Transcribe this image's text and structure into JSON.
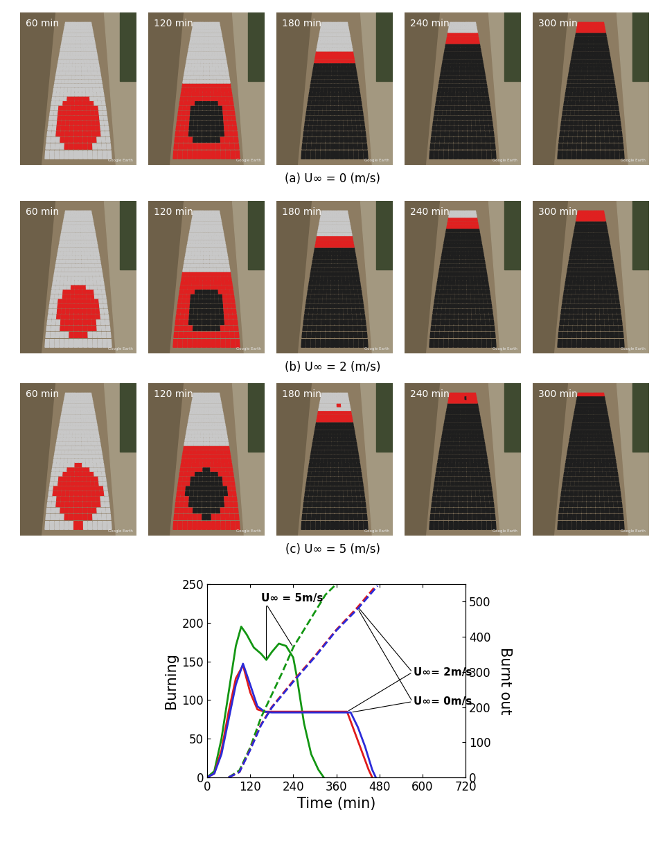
{
  "panels": {
    "times": [
      "60 min",
      "120 min",
      "180 min",
      "240 min",
      "300 min"
    ],
    "watermark": "Google Earth",
    "captions": [
      "(a) U∞ = 0 (m/s)",
      "(b) U∞ = 2 (m/s)",
      "(c) U∞ = 5 (m/s)"
    ]
  },
  "chart_data": {
    "type": "line",
    "x_label": "Time (min)",
    "y_label": "Burning",
    "y2_label": "Burnt out",
    "xlim": [
      0,
      720
    ],
    "xticks": [
      0,
      120,
      240,
      360,
      480,
      600,
      720
    ],
    "ylim": [
      0,
      250
    ],
    "yticks": [
      0,
      50,
      100,
      150,
      200,
      250
    ],
    "y2lim": [
      0,
      550
    ],
    "y2ticks": [
      0,
      100,
      200,
      300,
      400,
      500
    ],
    "series": [
      {
        "name": "U∞ = 5m/s",
        "color": "#139613",
        "line_style": "solid",
        "x": [
          0,
          20,
          40,
          60,
          80,
          95,
          110,
          130,
          150,
          165,
          180,
          200,
          220,
          240,
          250,
          270,
          290,
          310,
          325
        ],
        "values": [
          0,
          8,
          50,
          110,
          170,
          195,
          185,
          168,
          160,
          152,
          162,
          173,
          170,
          155,
          130,
          70,
          30,
          10,
          0
        ]
      },
      {
        "name": "U∞ = 5m/s",
        "color": "#139613",
        "line_style": "dashed",
        "axis": "y2",
        "x": [
          60,
          90,
          120,
          150,
          180,
          210,
          240,
          270,
          300,
          330,
          360
        ],
        "values": [
          0,
          20,
          85,
          170,
          235,
          300,
          370,
          420,
          470,
          520,
          550
        ]
      },
      {
        "name": "U∞= 2m/s",
        "color": "#e01b1b",
        "line_style": "solid",
        "x": [
          0,
          20,
          40,
          60,
          80,
          100,
          120,
          140,
          160,
          180,
          240,
          300,
          360,
          390,
          410,
          430,
          450,
          460
        ],
        "values": [
          0,
          5,
          35,
          85,
          128,
          145,
          110,
          88,
          85,
          85,
          85,
          85,
          85,
          85,
          60,
          35,
          10,
          0
        ]
      },
      {
        "name": "U∞= 2m/s",
        "color": "#e01b1b",
        "line_style": "dashed",
        "axis": "y2",
        "x": [
          60,
          90,
          120,
          150,
          180,
          240,
          300,
          360,
          420,
          470
        ],
        "values": [
          0,
          15,
          80,
          150,
          200,
          275,
          345,
          420,
          485,
          545
        ]
      },
      {
        "name": "U∞= 0m/s",
        "color": "#2b2bd9",
        "line_style": "solid",
        "x": [
          0,
          20,
          40,
          60,
          80,
          100,
          120,
          140,
          160,
          180,
          240,
          300,
          360,
          400,
          420,
          440,
          460,
          470
        ],
        "values": [
          0,
          5,
          30,
          75,
          120,
          147,
          120,
          92,
          85,
          84,
          84,
          84,
          84,
          84,
          65,
          40,
          10,
          0
        ]
      },
      {
        "name": "U∞= 0m/s",
        "color": "#2b2bd9",
        "line_style": "dashed",
        "axis": "y2",
        "x": [
          60,
          90,
          120,
          150,
          180,
          240,
          300,
          360,
          420,
          475
        ],
        "values": [
          0,
          15,
          78,
          148,
          198,
          272,
          342,
          418,
          480,
          545
        ]
      }
    ]
  }
}
